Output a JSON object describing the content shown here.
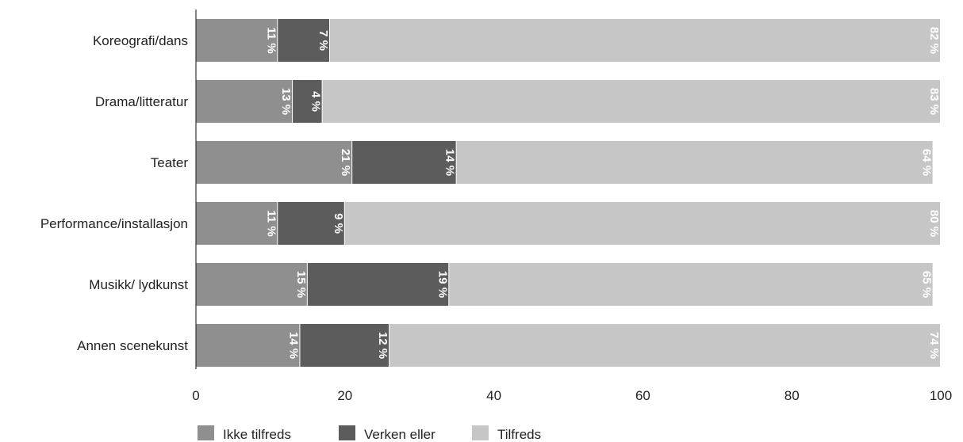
{
  "chart_data": {
    "type": "bar",
    "orientation": "horizontal",
    "stacked": true,
    "categories": [
      "Koreografi/dans",
      "Drama/litteratur",
      "Teater",
      "Performance/installasjon",
      "Musikk/ lydkunst",
      "Annen scenekunst"
    ],
    "series": [
      {
        "name": "Ikke tilfreds",
        "color": "#8f8f8f",
        "values": [
          11,
          13,
          21,
          11,
          15,
          14
        ],
        "labels": [
          "11 %",
          "13 %",
          "21 %",
          "11 %",
          "15 %",
          "14 %"
        ]
      },
      {
        "name": "Verken eller",
        "color": "#5c5c5c",
        "values": [
          7,
          4,
          14,
          9,
          19,
          12
        ],
        "labels": [
          "7 %",
          "4 %",
          "14 %",
          "9 %",
          "19 %",
          "12 %"
        ]
      },
      {
        "name": "Tilfreds",
        "color": "#c6c6c6",
        "values": [
          82,
          83,
          64,
          80,
          65,
          74
        ],
        "labels": [
          "82 %",
          "83 %",
          "64 %",
          "80 %",
          "65 %",
          "74 %"
        ]
      }
    ],
    "xlim": [
      0,
      100
    ],
    "xticks": [
      "0",
      "20",
      "40",
      "60",
      "80",
      "100"
    ],
    "grid": false,
    "legend": "bottom-left",
    "title": "",
    "xlabel": "",
    "ylabel": ""
  }
}
